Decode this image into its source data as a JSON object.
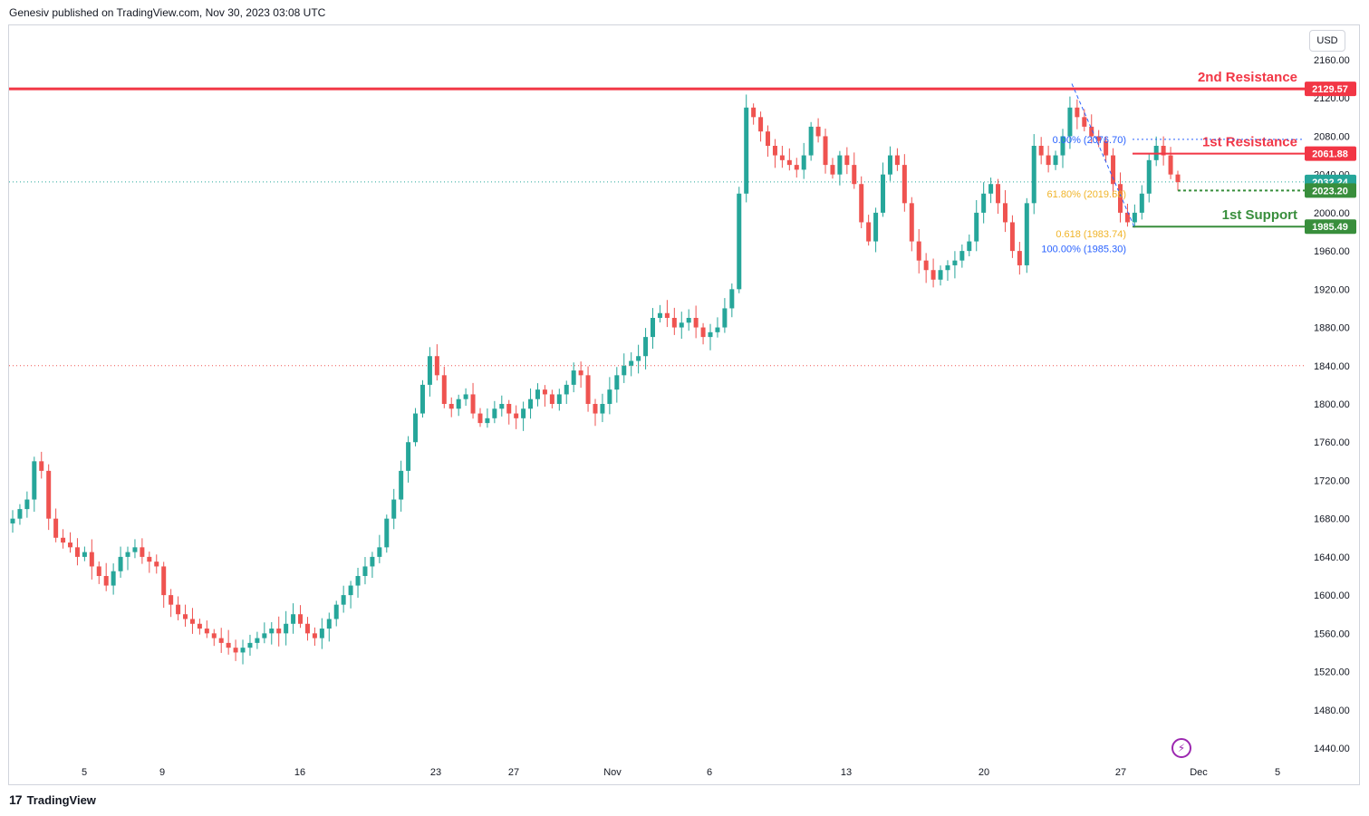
{
  "header": {
    "published_by": "Genesiv published on TradingView.com, Nov 30, 2023 03:08 UTC"
  },
  "currency_label": "USD",
  "footer": {
    "brand": "TradingView",
    "mark": "17"
  },
  "colors": {
    "up": "#26a69a",
    "down": "#ef5350",
    "resistance": "#f23645",
    "support": "#388e3c",
    "fib_blue": "#2962ff",
    "fib_gold": "#f0b429",
    "grid": "#f0f3fa"
  },
  "chart_data": {
    "type": "candlestick",
    "symbol_currency": "USD",
    "ylim": [
      1420,
      2170
    ],
    "y_ticks": [
      "2160.00",
      "2120.00",
      "2080.00",
      "2040.00",
      "2000.00",
      "1960.00",
      "1920.00",
      "1880.00",
      "1840.00",
      "1800.00",
      "1760.00",
      "1720.00",
      "1680.00",
      "1640.00",
      "1600.00",
      "1560.00",
      "1520.00",
      "1480.00",
      "1440.00"
    ],
    "x_ticks": [
      "5",
      "9",
      "16",
      "23",
      "27",
      "Nov",
      "6",
      "13",
      "20",
      "27",
      "Dec",
      "5"
    ],
    "key_prices": [
      {
        "label": "2nd Resistance",
        "value": 2129.57,
        "text": "2129.57",
        "kind": "resistance"
      },
      {
        "label": "1st Resistance",
        "value": 2061.88,
        "text": "2061.88",
        "kind": "resistance"
      },
      {
        "label": "1st Support",
        "value": 1985.49,
        "text": "1985.49",
        "kind": "support"
      }
    ],
    "price_tags": [
      {
        "text": "2032.24",
        "value": 2032.24,
        "color": "#26a69a"
      },
      {
        "text": "2023.20",
        "value": 2023.2,
        "color": "#388e3c"
      }
    ],
    "fib_labels": [
      {
        "text": "0.00% (2076.70)",
        "value": 2076.7,
        "color": "#2962ff"
      },
      {
        "text": "61.80% (2019.68)",
        "value": 2019.68,
        "color": "#f0b429"
      },
      {
        "text": "0.618 (1983.74)",
        "value": 1983.74,
        "color": "#f0b429"
      },
      {
        "text": "100.00% (1985.30)",
        "value": 1985.3,
        "color": "#2962ff"
      }
    ],
    "reference_lines": [
      2032.24,
      1840.0
    ],
    "closes": [
      1680,
      1690,
      1700,
      1740,
      1730,
      1680,
      1660,
      1655,
      1650,
      1640,
      1645,
      1630,
      1620,
      1610,
      1625,
      1640,
      1645,
      1650,
      1640,
      1635,
      1630,
      1600,
      1590,
      1580,
      1575,
      1570,
      1565,
      1560,
      1555,
      1550,
      1545,
      1540,
      1545,
      1550,
      1555,
      1560,
      1565,
      1560,
      1570,
      1580,
      1570,
      1560,
      1555,
      1565,
      1575,
      1590,
      1600,
      1610,
      1620,
      1630,
      1640,
      1650,
      1680,
      1700,
      1730,
      1760,
      1790,
      1820,
      1850,
      1830,
      1800,
      1795,
      1805,
      1810,
      1790,
      1780,
      1785,
      1795,
      1800,
      1790,
      1785,
      1795,
      1805,
      1815,
      1810,
      1800,
      1810,
      1820,
      1835,
      1830,
      1800,
      1790,
      1800,
      1815,
      1830,
      1840,
      1845,
      1850,
      1870,
      1890,
      1895,
      1890,
      1880,
      1885,
      1890,
      1880,
      1870,
      1875,
      1880,
      1900,
      1920,
      2020,
      2110,
      2100,
      2085,
      2070,
      2060,
      2055,
      2050,
      2045,
      2060,
      2090,
      2080,
      2050,
      2040,
      2060,
      2050,
      2030,
      1990,
      1970,
      2000,
      2040,
      2060,
      2050,
      2010,
      1970,
      1950,
      1940,
      1930,
      1940,
      1945,
      1950,
      1960,
      1970,
      2000,
      2020,
      2030,
      2010,
      1990,
      1960,
      1945,
      2010,
      2070,
      2060,
      2050,
      2060,
      2080,
      2110,
      2100,
      2090,
      2080,
      2075,
      2060,
      2030,
      2000,
      1990,
      2000,
      2020,
      2055,
      2070,
      2060,
      2040,
      2032
    ]
  }
}
